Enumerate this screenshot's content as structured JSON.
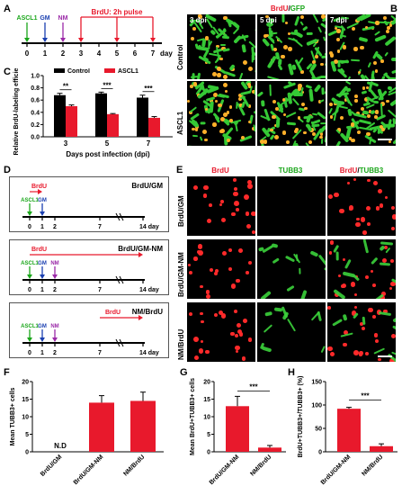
{
  "panels": {
    "A": {
      "letter": "A",
      "markers": [
        "ASCL1",
        "GM",
        "NM"
      ],
      "marker_colors": [
        "#1aa61a",
        "#1a3fb0",
        "#9b2aa8"
      ],
      "pulse_label": "BrdU: 2h pulse",
      "pulse_days": [
        3,
        5,
        7
      ],
      "ticks": [
        "0",
        "1",
        "2",
        "3",
        "4",
        "5",
        "6",
        "7"
      ],
      "unit": "day"
    },
    "B": {
      "letter": "B",
      "title_red": "BrdU",
      "title_sep": "/",
      "title_green": "GFP",
      "columns": [
        "3 dpi",
        "5 dpi",
        "7 dpi"
      ],
      "rows": [
        "Control",
        "ASCL1"
      ]
    },
    "C": {
      "letter": "C",
      "legend": [
        "Control",
        "ASCL1"
      ],
      "sig": [
        "**",
        "***",
        "***"
      ]
    },
    "D": {
      "letter": "D",
      "boxes": [
        {
          "title": "BrdU/GM",
          "brdu": "BrdU",
          "markers": [
            "ASCL1",
            "GM"
          ],
          "ticks": [
            "0",
            "1",
            "2",
            "7",
            "14 day"
          ]
        },
        {
          "title": "BrdU/GM-NM",
          "brdu": "BrdU",
          "markers": [
            "ASCL1",
            "GM",
            "NM"
          ],
          "ticks": [
            "0",
            "1",
            "2",
            "7",
            "14 day"
          ]
        },
        {
          "title": "NM/BrdU",
          "brdu": "BrdU",
          "markers": [
            "ASCL1",
            "GM",
            "NM"
          ],
          "ticks": [
            "0",
            "1",
            "2",
            "7",
            "14 day"
          ]
        }
      ]
    },
    "E": {
      "letter": "E",
      "col_red": "BrdU",
      "col_green": "TUBB3",
      "col_merge_red": "BrdU",
      "col_merge_sep": "/",
      "col_merge_green": "TUBB3",
      "rows": [
        "BrdU/GM",
        "BrdU/GM-NM",
        "NM/BrdU"
      ]
    },
    "F": {
      "letter": "F",
      "nd_label": "N.D"
    },
    "G": {
      "letter": "G",
      "sig": "***"
    },
    "H": {
      "letter": "H",
      "sig": "***"
    }
  },
  "chart_data": [
    {
      "id": "C",
      "type": "bar",
      "title": "",
      "xlabel": "Days post infection (dpi)",
      "ylabel": "Relative BrdU-labeling efficiency",
      "categories": [
        "3",
        "5",
        "7"
      ],
      "series": [
        {
          "name": "Control",
          "values": [
            0.68,
            0.71,
            0.64
          ],
          "errors": [
            0.03,
            0.02,
            0.04
          ],
          "color": "#000000"
        },
        {
          "name": "ASCL1",
          "values": [
            0.5,
            0.37,
            0.31
          ],
          "errors": [
            0.02,
            0.01,
            0.02
          ],
          "color": "#e8192c"
        }
      ],
      "ylim": [
        0,
        1.0
      ],
      "yticks": [
        "0.0",
        "0.2",
        "0.4",
        "0.6",
        "0.8",
        "1.0"
      ],
      "grid": false
    },
    {
      "id": "F",
      "type": "bar",
      "title": "",
      "xlabel": "",
      "ylabel": "Mean TUBB3+ cells",
      "categories": [
        "BrdU/GM",
        "BrdU/GM-NM",
        "NM/BrdU"
      ],
      "values": [
        0,
        14,
        14.5
      ],
      "errors": [
        0,
        2,
        2.5
      ],
      "ylim": [
        0,
        20
      ],
      "yticks": [
        "0",
        "5",
        "10",
        "15",
        "20"
      ],
      "color": "#e8192c",
      "grid": false
    },
    {
      "id": "G",
      "type": "bar",
      "title": "",
      "xlabel": "",
      "ylabel": "Mean BrdU+TUBB3+ cells",
      "categories": [
        "BrdU/GM-NM",
        "NM/BrdU"
      ],
      "values": [
        13,
        1.2
      ],
      "errors": [
        2.8,
        0.6
      ],
      "ylim": [
        0,
        20
      ],
      "yticks": [
        "0",
        "5",
        "10",
        "15",
        "20"
      ],
      "color": "#e8192c",
      "grid": false
    },
    {
      "id": "H",
      "type": "bar",
      "title": "",
      "xlabel": "",
      "ylabel": "BrdU+TUBB3+/TUBB3+ (%)",
      "categories": [
        "BrdU/GM-NM",
        "NM/BrdU"
      ],
      "values": [
        92,
        12
      ],
      "errors": [
        3,
        5
      ],
      "ylim": [
        0,
        150
      ],
      "yticks": [
        "0",
        "50",
        "100",
        "150"
      ],
      "color": "#e8192c",
      "grid": false
    }
  ]
}
